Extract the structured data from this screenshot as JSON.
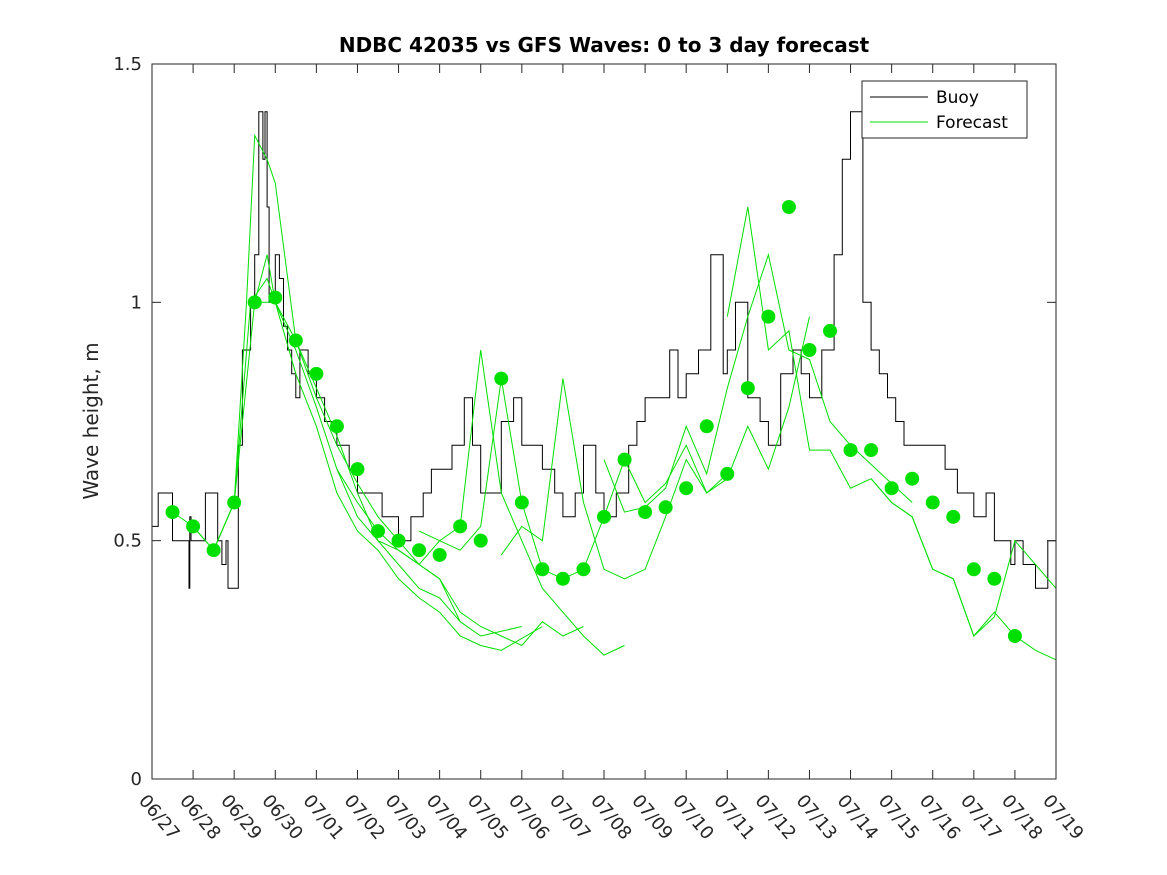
{
  "chart_data": {
    "type": "line",
    "title": "NDBC 42035 vs GFS Waves: 0 to 3 day forecast",
    "xlabel": "",
    "ylabel": "Wave height, m",
    "xlim": [
      "06/27",
      "07/19"
    ],
    "ylim": [
      0,
      1.5
    ],
    "y_ticks": [
      "0",
      "0.5",
      "1",
      "1.5"
    ],
    "x_ticks": [
      "06/27",
      "06/28",
      "06/29",
      "06/30",
      "07/01",
      "07/02",
      "07/03",
      "07/04",
      "07/05",
      "07/06",
      "07/07",
      "07/08",
      "07/09",
      "07/10",
      "07/11",
      "07/12",
      "07/13",
      "07/14",
      "07/15",
      "07/16",
      "07/17",
      "07/18",
      "07/19"
    ],
    "legend": {
      "placement": "top-right",
      "entries": [
        {
          "label": "Buoy",
          "color": "#000000"
        },
        {
          "label": "Forecast",
          "color": "#00e000"
        }
      ]
    },
    "series": [
      {
        "name": "Buoy",
        "color": "#000000",
        "x_days": [
          0,
          0.15,
          0.35,
          0.5,
          0.75,
          0.9,
          0.92,
          0.95,
          1.0,
          1.3,
          1.5,
          1.6,
          1.7,
          1.8,
          1.85,
          1.95,
          2.0,
          2.1,
          2.2,
          2.3,
          2.4,
          2.5,
          2.6,
          2.7,
          2.75,
          2.8,
          2.85,
          2.9,
          3.0,
          3.1,
          3.2,
          3.3,
          3.4,
          3.5,
          3.6,
          3.8,
          4.0,
          4.2,
          4.5,
          4.8,
          5.0,
          5.3,
          5.6,
          6.0,
          6.3,
          6.6,
          6.8,
          7.0,
          7.3,
          7.6,
          7.8,
          8.0,
          8.2,
          8.5,
          8.8,
          9.0,
          9.3,
          9.5,
          9.8,
          10.0,
          10.3,
          10.5,
          10.8,
          11.0,
          11.3,
          11.6,
          11.8,
          12.0,
          12.3,
          12.6,
          12.8,
          13.0,
          13.3,
          13.6,
          13.9,
          14.0,
          14.2,
          14.5,
          14.8,
          15.0,
          15.3,
          15.6,
          15.8,
          16.0,
          16.3,
          16.6,
          16.8,
          17.0,
          17.3,
          17.5,
          17.7,
          17.9,
          18.1,
          18.3,
          18.6,
          18.8,
          19.0,
          19.3,
          19.6,
          19.8,
          20.0,
          20.3,
          20.5,
          20.7,
          20.9,
          21.0,
          21.2,
          21.5,
          21.8,
          22.0
        ],
        "y_m": [
          0.53,
          0.6,
          0.6,
          0.5,
          0.5,
          0.4,
          0.55,
          0.5,
          0.5,
          0.6,
          0.6,
          0.5,
          0.45,
          0.5,
          0.4,
          0.4,
          0.4,
          0.7,
          0.9,
          0.9,
          1.0,
          1.1,
          1.4,
          1.3,
          1.4,
          1.2,
          1.0,
          1.0,
          1.1,
          1.05,
          0.95,
          0.9,
          0.85,
          0.8,
          0.9,
          0.85,
          0.8,
          0.75,
          0.7,
          0.65,
          0.6,
          0.6,
          0.55,
          0.5,
          0.55,
          0.6,
          0.65,
          0.65,
          0.7,
          0.8,
          0.7,
          0.6,
          0.6,
          0.75,
          0.8,
          0.7,
          0.7,
          0.65,
          0.6,
          0.55,
          0.6,
          0.7,
          0.6,
          0.55,
          0.6,
          0.7,
          0.75,
          0.8,
          0.8,
          0.9,
          0.8,
          0.85,
          0.9,
          1.1,
          0.85,
          0.9,
          1.0,
          0.8,
          0.75,
          0.7,
          0.85,
          0.9,
          0.85,
          0.8,
          0.9,
          1.1,
          1.3,
          1.4,
          1.0,
          0.9,
          0.85,
          0.8,
          0.75,
          0.7,
          0.7,
          0.7,
          0.7,
          0.65,
          0.6,
          0.6,
          0.55,
          0.6,
          0.5,
          0.5,
          0.45,
          0.5,
          0.45,
          0.4,
          0.5,
          0.4
        ]
      },
      {
        "name": "Forecast",
        "color": "#00e000",
        "runs_x_days": [
          [
            0.5,
            1.0,
            1.5,
            2.0,
            2.3,
            2.5,
            2.8,
            3.0,
            3.5,
            4.0,
            4.5,
            5.0,
            5.5,
            6.0,
            6.5,
            7.0,
            7.5
          ],
          [
            1.0,
            1.5,
            2.0,
            2.5,
            2.8,
            3.0,
            3.5,
            4.0,
            4.5,
            5.0,
            5.5,
            6.0,
            6.5,
            7.0,
            7.5,
            8.0,
            9.0
          ],
          [
            1.5,
            2.0,
            2.4,
            2.8,
            3.0,
            3.5,
            4.0,
            4.5,
            5.0,
            5.5,
            6.0,
            6.5,
            7.0,
            7.5,
            8.0,
            8.5,
            9.5
          ],
          [
            2.5,
            3.0,
            3.5,
            4.0,
            4.5,
            5.0,
            5.5,
            6.0,
            6.5,
            7.0,
            7.5,
            8.0,
            8.5,
            9.0,
            9.5,
            10.0,
            10.5
          ],
          [
            4.5,
            5.0,
            5.5,
            6.0,
            6.5,
            7.0,
            7.5,
            8.0,
            8.5,
            9.0,
            9.5,
            10.0,
            10.5,
            11.0,
            11.5
          ],
          [
            6.5,
            7.0,
            7.5,
            8.0,
            8.5,
            9.0,
            9.5,
            10.0,
            10.5,
            11.0,
            11.5,
            12.0,
            12.5,
            13.0,
            13.5,
            14.0
          ],
          [
            8.5,
            9.0,
            9.5,
            10.0,
            10.5,
            11.0,
            11.5,
            12.0,
            12.5,
            13.0,
            13.5,
            14.0,
            14.5,
            15.0,
            15.5,
            16.0
          ],
          [
            11.0,
            11.5,
            12.0,
            12.5,
            13.0,
            13.5,
            14.0,
            14.5,
            15.0,
            15.5,
            16.0,
            16.5,
            17.0,
            17.5,
            18.0,
            18.5
          ],
          [
            14.0,
            14.5,
            15.0,
            15.5,
            16.0,
            16.5,
            17.0,
            17.5,
            18.0,
            18.5,
            19.0,
            19.5,
            20.0,
            20.5,
            21.0,
            21.5,
            22.0
          ],
          [
            17.5,
            18.0,
            18.5,
            19.0,
            19.5,
            20.0,
            20.5,
            21.0,
            21.5,
            22.0
          ]
        ],
        "runs_y_m": [
          [
            0.56,
            0.53,
            0.48,
            0.58,
            1.0,
            1.35,
            1.3,
            1.25,
            0.92,
            0.8,
            0.7,
            0.62,
            0.55,
            0.5,
            0.45,
            0.42,
            0.33
          ],
          [
            0.53,
            0.48,
            0.58,
            1.0,
            1.1,
            1.0,
            0.9,
            0.78,
            0.65,
            0.55,
            0.5,
            0.45,
            0.4,
            0.38,
            0.33,
            0.3,
            0.32
          ],
          [
            0.48,
            0.58,
            1.0,
            1.05,
            1.0,
            0.85,
            0.74,
            0.6,
            0.52,
            0.48,
            0.42,
            0.38,
            0.35,
            0.3,
            0.28,
            0.27,
            0.32
          ],
          [
            1.0,
            1.0,
            0.92,
            0.82,
            0.72,
            0.6,
            0.5,
            0.48,
            0.45,
            0.42,
            0.35,
            0.32,
            0.3,
            0.28,
            0.33,
            0.3,
            0.32
          ],
          [
            0.65,
            0.58,
            0.52,
            0.48,
            0.45,
            0.5,
            0.53,
            0.9,
            0.6,
            0.5,
            0.4,
            0.35,
            0.3,
            0.26,
            0.28
          ],
          [
            0.52,
            0.5,
            0.48,
            0.53,
            0.84,
            0.58,
            0.44,
            0.42,
            0.44,
            0.55,
            0.67,
            0.58,
            0.62,
            0.7,
            0.6,
            0.64
          ],
          [
            0.47,
            0.53,
            0.5,
            0.84,
            0.58,
            0.44,
            0.42,
            0.44,
            0.55,
            0.67,
            0.6,
            0.63,
            0.74,
            0.65,
            0.78,
            0.97
          ],
          [
            0.67,
            0.56,
            0.57,
            0.61,
            0.74,
            0.64,
            0.82,
            0.97,
            1.1,
            0.9,
            0.88,
            0.75,
            0.7,
            0.66,
            0.62,
            0.58
          ],
          [
            0.97,
            1.2,
            0.9,
            0.94,
            0.69,
            0.69,
            0.61,
            0.63,
            0.58,
            0.55,
            0.44,
            0.42,
            0.3,
            0.35,
            0.3,
            0.27,
            0.25
          ],
          [
            0.63,
            0.58,
            0.55,
            0.44,
            0.42,
            0.3,
            0.34,
            0.5,
            0.45,
            0.4
          ]
        ],
        "markers_x_days": [
          0.5,
          1.0,
          1.5,
          2.0,
          2.5,
          3.0,
          3.5,
          4.0,
          4.5,
          5.0,
          5.5,
          6.0,
          6.5,
          7.0,
          7.5,
          8.0,
          8.5,
          9.0,
          9.5,
          10.0,
          10.5,
          11.0,
          11.5,
          12.0,
          12.5,
          13.0,
          13.5,
          14.0,
          14.5,
          15.0,
          15.5,
          16.0,
          16.5,
          17.0,
          17.5,
          18.0,
          18.5,
          19.0,
          19.5,
          20.0,
          20.5,
          21.0
        ],
        "markers_y_m": [
          0.56,
          0.53,
          0.48,
          0.58,
          1.0,
          1.01,
          0.92,
          0.85,
          0.74,
          0.65,
          0.52,
          0.5,
          0.48,
          0.47,
          0.53,
          0.5,
          0.84,
          0.58,
          0.44,
          0.42,
          0.44,
          0.55,
          0.67,
          0.56,
          0.57,
          0.61,
          0.74,
          0.64,
          0.82,
          0.97,
          1.2,
          0.9,
          0.94,
          0.69,
          0.69,
          0.61,
          0.63,
          0.58,
          0.55,
          0.44,
          0.42,
          0.3
        ]
      }
    ]
  }
}
